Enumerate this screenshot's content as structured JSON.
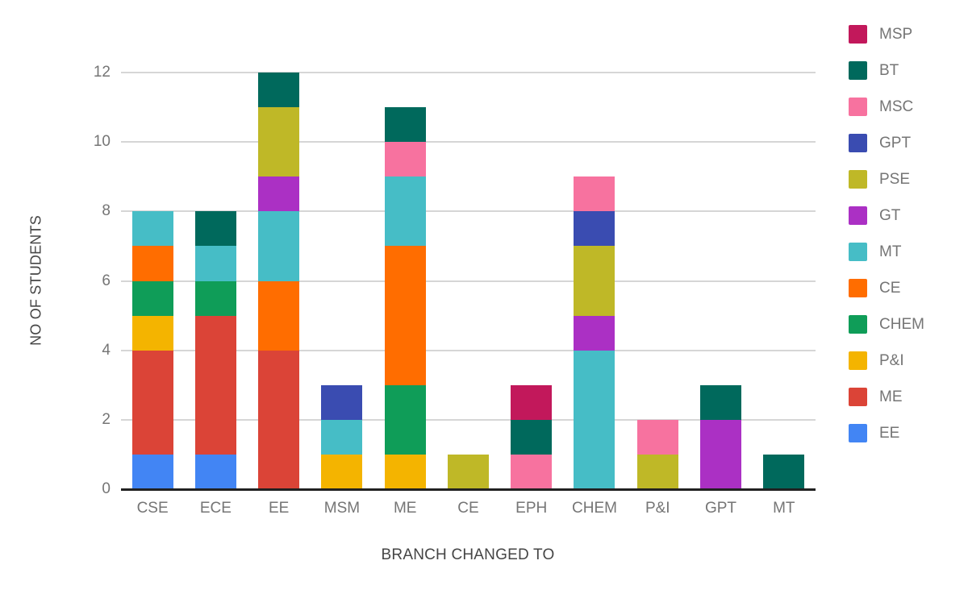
{
  "chart_data": {
    "type": "bar",
    "stacked": true,
    "title": "",
    "xlabel": "BRANCH CHANGED TO",
    "ylabel": "NO OF STUDENTS",
    "ylim": [
      0,
      12
    ],
    "yticks": [
      0,
      2,
      4,
      6,
      8,
      10,
      12
    ],
    "grid": true,
    "legend_position": "right",
    "categories": [
      "CSE",
      "ECE",
      "EE",
      "MSM",
      "ME",
      "CE",
      "EPH",
      "CHEM",
      "P&I",
      "GPT",
      "MT"
    ],
    "series": [
      {
        "name": "EE",
        "color": "#4285F4",
        "values": [
          1,
          1,
          0,
          0,
          0,
          0,
          0,
          0,
          0,
          0,
          0
        ]
      },
      {
        "name": "ME",
        "color": "#DB4437",
        "values": [
          3,
          4,
          4,
          0,
          0,
          0,
          0,
          0,
          0,
          0,
          0
        ]
      },
      {
        "name": "P&I",
        "color": "#F4B400",
        "values": [
          1,
          0,
          0,
          1,
          1,
          0,
          0,
          0,
          0,
          0,
          0
        ]
      },
      {
        "name": "CHEM",
        "color": "#0F9D58",
        "values": [
          1,
          1,
          0,
          0,
          2,
          0,
          0,
          0,
          0,
          0,
          0
        ]
      },
      {
        "name": "CE",
        "color": "#FF6D00",
        "values": [
          1,
          0,
          2,
          0,
          4,
          0,
          0,
          0,
          0,
          0,
          0
        ]
      },
      {
        "name": "MT",
        "color": "#46BDC6",
        "values": [
          1,
          1,
          2,
          1,
          2,
          0,
          0,
          4,
          0,
          0,
          0
        ]
      },
      {
        "name": "GT",
        "color": "#AB30C4",
        "values": [
          0,
          0,
          1,
          0,
          0,
          0,
          0,
          1,
          0,
          2,
          0
        ]
      },
      {
        "name": "PSE",
        "color": "#BFB827",
        "values": [
          0,
          0,
          2,
          0,
          0,
          1,
          0,
          2,
          1,
          0,
          0
        ]
      },
      {
        "name": "GPT",
        "color": "#3A4CB1",
        "values": [
          0,
          0,
          0,
          1,
          0,
          0,
          0,
          1,
          0,
          0,
          0
        ]
      },
      {
        "name": "MSC",
        "color": "#F7729F",
        "values": [
          0,
          0,
          0,
          0,
          1,
          0,
          1,
          1,
          1,
          0,
          0
        ]
      },
      {
        "name": "BT",
        "color": "#00695C",
        "values": [
          0,
          1,
          1,
          0,
          1,
          0,
          1,
          0,
          0,
          1,
          1
        ]
      },
      {
        "name": "MSP",
        "color": "#C2185B",
        "values": [
          0,
          0,
          0,
          0,
          0,
          0,
          1,
          0,
          0,
          0,
          0
        ]
      }
    ],
    "legend_order": [
      "MSP",
      "BT",
      "MSC",
      "GPT",
      "PSE",
      "GT",
      "MT",
      "CE",
      "CHEM",
      "P&I",
      "ME",
      "EE"
    ],
    "totals_by_category": [
      8,
      8,
      12,
      3,
      11,
      1,
      3,
      9,
      2,
      3,
      1
    ]
  },
  "colors": {
    "background": "#FFFFFF",
    "gridline": "#D6D6D6",
    "baseline": "#212121",
    "tick_label": "#757575",
    "category_label": "#757575",
    "legend_label": "#757575",
    "axis_title": "#454545"
  }
}
